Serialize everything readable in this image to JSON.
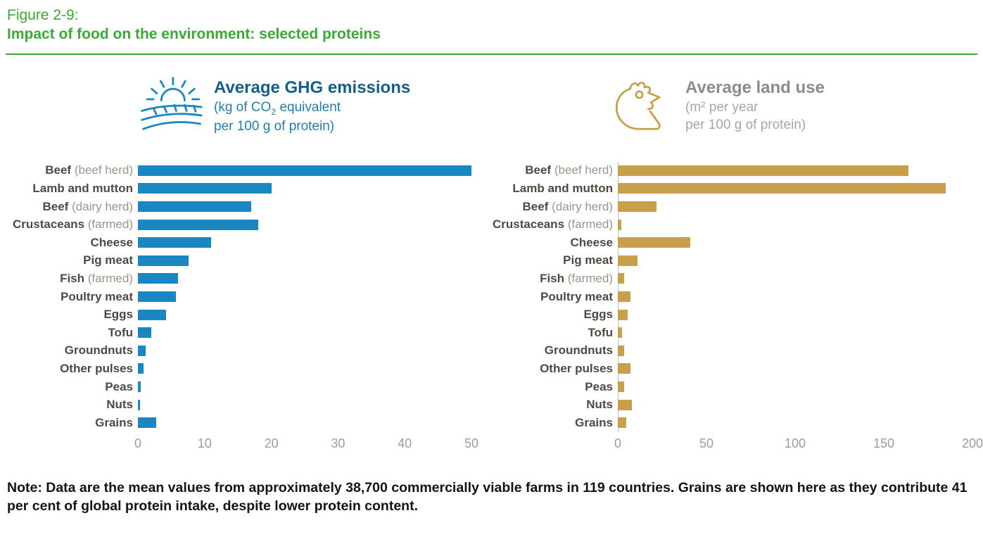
{
  "figure": {
    "label": "Figure 2-9:",
    "title": "Impact of food on the environment: selected proteins"
  },
  "note": "Note: Data are the mean values from approximately 38,700 commercially viable farms  in 119 countries. Grains are shown here as they contribute 41 per cent of global protein intake, despite lower protein content.",
  "colors": {
    "green_accent": "#3aaa35",
    "ghg_bar_blue": "#1a87c2",
    "ghg_title_blue": "#14608c",
    "land_bar_tan": "#c6a04b",
    "land_title_gray": "#8c8c8c",
    "label_dark": "#4e4a42",
    "label_light": "#9d9488",
    "tick_gray": "#9d9d9d"
  },
  "chart_data": [
    {
      "type": "bar",
      "orientation": "horizontal",
      "title": "Average GHG emissions",
      "subtitle_pre": "(kg of CO",
      "subtitle_sub": "2",
      "subtitle_post": " equivalent",
      "subtitle_line2": "per 100 g of protein)",
      "icon": "sun-over-field",
      "bar_color": "#1a87c2",
      "xlim": [
        0,
        50
      ],
      "ticks": [
        0,
        10,
        20,
        30,
        40,
        50
      ],
      "axis_line": false,
      "categories": [
        {
          "name": "Beef",
          "qualifier": "(beef herd)"
        },
        {
          "name": "Lamb and mutton",
          "qualifier": ""
        },
        {
          "name": "Beef",
          "qualifier": "(dairy herd)"
        },
        {
          "name": "Crustaceans",
          "qualifier": "(farmed)"
        },
        {
          "name": "Cheese",
          "qualifier": ""
        },
        {
          "name": "Pig meat",
          "qualifier": ""
        },
        {
          "name": "Fish",
          "qualifier": "(farmed)"
        },
        {
          "name": "Poultry meat",
          "qualifier": ""
        },
        {
          "name": "Eggs",
          "qualifier": ""
        },
        {
          "name": "Tofu",
          "qualifier": ""
        },
        {
          "name": "Groundnuts",
          "qualifier": ""
        },
        {
          "name": "Other pulses",
          "qualifier": ""
        },
        {
          "name": "Peas",
          "qualifier": ""
        },
        {
          "name": "Nuts",
          "qualifier": ""
        },
        {
          "name": "Grains",
          "qualifier": ""
        }
      ],
      "values": [
        50,
        20,
        17,
        18,
        11,
        7.6,
        6,
        5.7,
        4.2,
        2,
        1.2,
        0.8,
        0.4,
        0.3,
        2.7
      ]
    },
    {
      "type": "bar",
      "orientation": "horizontal",
      "title": "Average land use",
      "subtitle_line1": "(m² per year",
      "subtitle_line2": "per 100 g of protein)",
      "icon": "chicken-head",
      "bar_color": "#c6a04b",
      "xlim": [
        0,
        200
      ],
      "ticks": [
        0,
        50,
        100,
        150,
        200
      ],
      "axis_line": true,
      "categories": [
        {
          "name": "Beef",
          "qualifier": "(beef herd)"
        },
        {
          "name": "Lamb and mutton",
          "qualifier": ""
        },
        {
          "name": "Beef",
          "qualifier": "(dairy herd)"
        },
        {
          "name": "Crustaceans",
          "qualifier": "(farmed)"
        },
        {
          "name": "Cheese",
          "qualifier": ""
        },
        {
          "name": "Pig meat",
          "qualifier": ""
        },
        {
          "name": "Fish",
          "qualifier": "(farmed)"
        },
        {
          "name": "Poultry meat",
          "qualifier": ""
        },
        {
          "name": "Eggs",
          "qualifier": ""
        },
        {
          "name": "Tofu",
          "qualifier": ""
        },
        {
          "name": "Groundnuts",
          "qualifier": ""
        },
        {
          "name": "Other pulses",
          "qualifier": ""
        },
        {
          "name": "Peas",
          "qualifier": ""
        },
        {
          "name": "Nuts",
          "qualifier": ""
        },
        {
          "name": "Grains",
          "qualifier": ""
        }
      ],
      "values": [
        164,
        185,
        22,
        2,
        41,
        11,
        3.7,
        7.1,
        5.7,
        2.2,
        3.5,
        7.3,
        3.4,
        7.9,
        4.6
      ]
    }
  ]
}
